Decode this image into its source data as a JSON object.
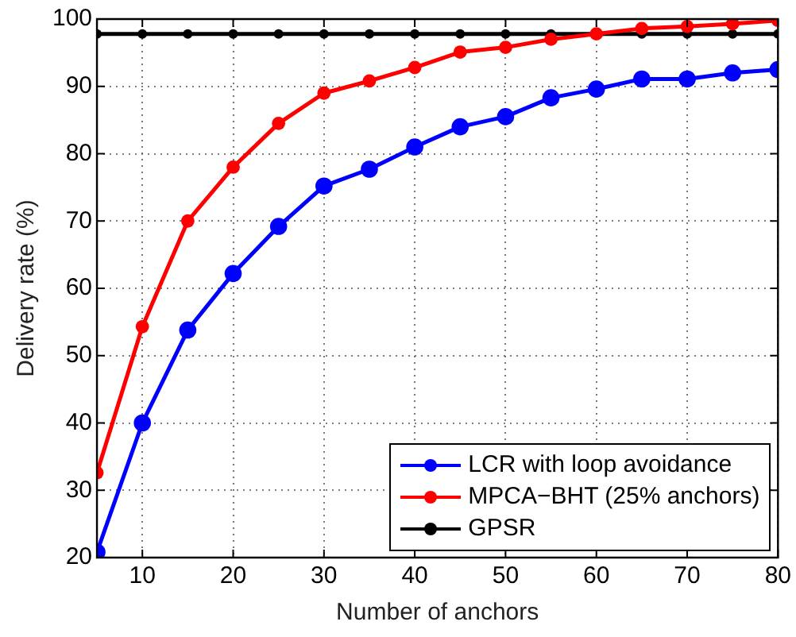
{
  "chart_data": {
    "type": "line",
    "xlabel": "Number of anchors",
    "ylabel": "Delivery rate (%)",
    "x": [
      5,
      10,
      15,
      20,
      25,
      30,
      35,
      40,
      45,
      50,
      55,
      60,
      65,
      70,
      75,
      80
    ],
    "series": [
      {
        "name": "LCR with loop avoidance",
        "color": "#0000ff",
        "values": [
          20.8,
          40,
          53.8,
          62.2,
          69.2,
          75.2,
          77.7,
          81,
          84,
          85.5,
          88.3,
          89.6,
          91.1,
          91.1,
          92,
          92.5
        ]
      },
      {
        "name": "MPCA−BHT (25% anchors)",
        "color": "#ff0000",
        "values": [
          32.6,
          54.3,
          70,
          78,
          84.5,
          89,
          90.8,
          92.8,
          95.1,
          95.8,
          97,
          97.8,
          98.6,
          98.9,
          99.3,
          99.8
        ]
      },
      {
        "name": "GPSR",
        "color": "#000000",
        "values": [
          97.8,
          97.8,
          97.8,
          97.8,
          97.8,
          97.8,
          97.8,
          97.8,
          97.8,
          97.8,
          97.8,
          97.8,
          97.8,
          97.8,
          97.8,
          97.8
        ]
      }
    ],
    "xlim": [
      5,
      80
    ],
    "xticks": [
      10,
      20,
      30,
      40,
      50,
      60,
      70,
      80
    ],
    "ylim": [
      20,
      100
    ],
    "yticks": [
      20,
      30,
      40,
      50,
      60,
      70,
      80,
      90,
      100
    ],
    "grid": true,
    "legend": "bottom right",
    "marker": "circle",
    "line_style": "solid"
  }
}
